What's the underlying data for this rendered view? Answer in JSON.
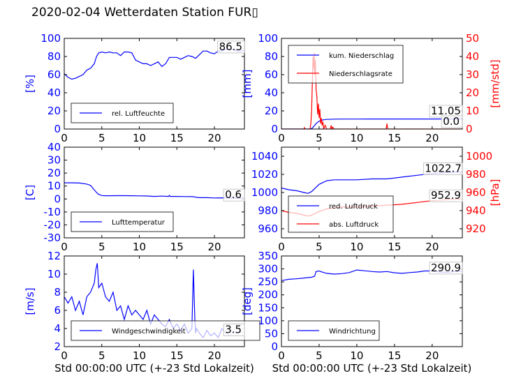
{
  "title": "2020-02-04 Wetterdaten Station FUR▯",
  "colors": {
    "primary": "#0000ff",
    "secondary": "#ff0000",
    "axis": "#000000"
  },
  "chart_data": [
    {
      "type": "line",
      "panel": "top-left",
      "ylabel": "[%]",
      "xlim": [
        0,
        24
      ],
      "ylim": [
        0,
        100
      ],
      "xticks": [
        0,
        5,
        10,
        15,
        20
      ],
      "yticks": [
        0,
        20,
        40,
        60,
        80,
        100
      ],
      "legend": "bottom-left",
      "last_value_label": "86.5",
      "series": [
        {
          "name": "rel. Luftfeuchte",
          "color": "#0000ff",
          "x": [
            0,
            0.5,
            1,
            1.5,
            2,
            2.5,
            3,
            3.5,
            4,
            4.3,
            4.6,
            5,
            5.5,
            6,
            6.5,
            7,
            7.5,
            8,
            8.5,
            9,
            9.5,
            10,
            10.5,
            11,
            11.5,
            12,
            12.5,
            13,
            13.5,
            14,
            14.5,
            15,
            15.5,
            16,
            16.5,
            17,
            17.5,
            18,
            18.5,
            19,
            19.5,
            20,
            20.5,
            21,
            21.5,
            22,
            22.5,
            23,
            23.5,
            24
          ],
          "values": [
            61,
            57,
            55,
            56,
            58,
            60,
            65,
            67,
            72,
            80,
            84,
            85,
            84,
            85,
            84,
            84,
            81,
            85,
            85,
            84,
            76,
            74,
            72,
            72,
            70,
            72,
            74,
            69,
            72,
            79,
            79,
            79,
            77,
            79,
            81,
            80,
            78,
            82,
            86,
            86,
            84,
            83,
            86,
            86,
            88,
            88,
            88,
            86,
            86,
            87
          ]
        }
      ]
    },
    {
      "type": "line",
      "panel": "top-right",
      "ylabel": "[mm]",
      "y2label": "[mm/std]",
      "xlim": [
        0,
        24
      ],
      "ylim": [
        0,
        100
      ],
      "y2lim": [
        0,
        50
      ],
      "xticks": [
        0,
        5,
        10,
        15,
        20
      ],
      "yticks": [
        0,
        20,
        40,
        60,
        80,
        100
      ],
      "y2ticks": [
        0,
        10,
        20,
        30,
        40,
        50
      ],
      "legend": "top-left",
      "last_value_labels": [
        "11.05",
        "0.0"
      ],
      "series": [
        {
          "name": "kum. Niederschlag",
          "color": "#0000ff",
          "axis": "left",
          "x": [
            0,
            3.8,
            4.0,
            4.2,
            4.4,
            4.6,
            4.8,
            5.0,
            5.3,
            5.6,
            6,
            7,
            8,
            10,
            12,
            14,
            16,
            18,
            20,
            22,
            24
          ],
          "values": [
            0,
            0,
            0.5,
            2,
            4,
            6,
            7.5,
            8.7,
            9.6,
            10.2,
            10.6,
            10.9,
            11.0,
            11.03,
            11.05,
            11.05,
            11.05,
            11.05,
            11.05,
            11.05,
            11.05
          ]
        },
        {
          "name": "Niederschlagsrate",
          "color": "#ff0000",
          "axis": "right",
          "x": [
            0,
            3.0,
            3.05,
            3.1,
            3.8,
            3.9,
            4.0,
            4.1,
            4.15,
            4.2,
            4.3,
            4.35,
            4.4,
            4.5,
            4.6,
            4.7,
            4.8,
            4.9,
            5.0,
            5.1,
            5.2,
            5.3,
            5.4,
            5.5,
            5.6,
            5.8,
            6.0,
            6.5,
            6.6,
            6.7,
            6.8,
            7.0,
            8.0,
            13.9,
            14.0,
            14.1,
            14.2,
            24
          ],
          "values": [
            0,
            0,
            1,
            0,
            0,
            3,
            10,
            25,
            34,
            40,
            33,
            42,
            30,
            38,
            22,
            18,
            8,
            14,
            6,
            11,
            3,
            6,
            2,
            4,
            0,
            2,
            0,
            0,
            2,
            0,
            1,
            0,
            0,
            0,
            3,
            0,
            0,
            0
          ]
        }
      ]
    },
    {
      "type": "line",
      "panel": "middle-left",
      "ylabel": "[C]",
      "xlim": [
        0,
        24
      ],
      "ylim": [
        -30,
        40
      ],
      "xticks": [
        0,
        5,
        10,
        15,
        20
      ],
      "yticks": [
        -30,
        -20,
        -10,
        0,
        10,
        20,
        30,
        40
      ],
      "legend": "bottom-left",
      "last_value_label": "0.6",
      "series": [
        {
          "name": "Lufttemperatur",
          "color": "#0000ff",
          "x": [
            0,
            1,
            2,
            3,
            3.5,
            4,
            4.3,
            4.6,
            5,
            5.5,
            6,
            7,
            8,
            9,
            10,
            11,
            12,
            13,
            13.9,
            14,
            14.1,
            15,
            16,
            17,
            18,
            19,
            20,
            21,
            22,
            23,
            24
          ],
          "values": [
            12.5,
            12.5,
            12.3,
            11.5,
            10.5,
            7,
            5,
            3.5,
            2.7,
            2.5,
            2.5,
            2.6,
            2.6,
            2.5,
            2.4,
            2.3,
            2.0,
            2.2,
            2.0,
            2.8,
            2.0,
            2.0,
            1.9,
            1.8,
            1.0,
            1.0,
            0.8,
            0.9,
            0.7,
            0.6,
            0.6
          ]
        }
      ]
    },
    {
      "type": "line",
      "panel": "middle-right",
      "y2label": "[hPa]",
      "xlim": [
        0,
        24
      ],
      "ylim": [
        950,
        1050
      ],
      "y2lim": [
        910,
        1010
      ],
      "xticks": [
        0,
        5,
        10,
        15,
        20
      ],
      "yticks": [
        960,
        980,
        1000,
        1020,
        1040
      ],
      "y2ticks": [
        920,
        940,
        960,
        980,
        1000
      ],
      "legend": "bottom-left",
      "last_value_labels": [
        "1022.7",
        "952.9"
      ],
      "series": [
        {
          "name": "red. Luftdruck",
          "color": "#0000ff",
          "axis": "left",
          "x": [
            0,
            1,
            2,
            3,
            3.5,
            4,
            5,
            6,
            7,
            8,
            10,
            12,
            14,
            16,
            18,
            20,
            22,
            24
          ],
          "values": [
            1005,
            1003,
            1002,
            1000,
            999,
            1001,
            1009,
            1013,
            1014,
            1014,
            1014,
            1015,
            1015,
            1017,
            1019,
            1021,
            1022,
            1022.7
          ]
        },
        {
          "name": "abs. Luftdruck",
          "color": "#ff0000",
          "axis": "right",
          "x": [
            0,
            1,
            2,
            3,
            3.5,
            4,
            5,
            6,
            7,
            8,
            10,
            12,
            14,
            16,
            18,
            20,
            22,
            24
          ],
          "values": [
            940,
            938,
            937,
            935,
            934,
            935,
            939,
            942,
            943,
            944,
            944,
            945,
            946,
            947,
            949,
            951,
            952,
            952.9
          ]
        }
      ]
    },
    {
      "type": "line",
      "panel": "bottom-left",
      "ylabel": "[m/s]",
      "xlabel": "Std 00:00:00 UTC (+-23 Std Lokalzeit)",
      "xlim": [
        0,
        24
      ],
      "ylim": [
        2,
        12
      ],
      "xticks": [
        0,
        5,
        10,
        15,
        20
      ],
      "yticks": [
        2,
        4,
        6,
        8,
        10,
        12
      ],
      "legend": "bottom-left",
      "last_value_label": "3.5",
      "series": [
        {
          "name": "Windgeschwindigkeit",
          "color": "#0000ff",
          "x": [
            0,
            0.5,
            1,
            1.5,
            2,
            2.5,
            3,
            3.5,
            4,
            4.2,
            4.4,
            4.6,
            5,
            5.5,
            6,
            6.5,
            7,
            7.5,
            8,
            8.5,
            9,
            9.5,
            10,
            10.5,
            11,
            11.5,
            12,
            12.5,
            13,
            13.5,
            14,
            14.5,
            15,
            15.5,
            16,
            16.5,
            17,
            17.2,
            17.4,
            17.5,
            17.6,
            18,
            18.5,
            19,
            19.5,
            20,
            20.5,
            21,
            21.5,
            22,
            22.5,
            23,
            23.5,
            24
          ],
          "values": [
            7.5,
            6.8,
            7.5,
            6,
            7,
            5.5,
            7.5,
            8,
            9,
            10.5,
            11.2,
            8.5,
            9,
            7.5,
            7,
            8,
            6,
            6.5,
            5,
            6.5,
            5.5,
            6,
            5.5,
            5,
            6,
            4.5,
            5.5,
            5,
            4.5,
            4.2,
            5,
            4,
            4.5,
            3.8,
            4.5,
            3.5,
            4,
            10.5,
            5,
            3.5,
            4,
            3.5,
            3,
            3.8,
            3.2,
            3.5,
            3,
            4,
            3.5,
            3.2,
            3.8,
            3.5,
            3.5,
            3.5
          ]
        }
      ]
    },
    {
      "type": "line",
      "panel": "bottom-right",
      "ylabel": "[deg]",
      "xlabel": "Std 00:00:00 UTC (+-23 Std Lokalzeit)",
      "xlim": [
        0,
        24
      ],
      "ylim": [
        0,
        350
      ],
      "xticks": [
        0,
        5,
        10,
        15,
        20
      ],
      "yticks": [
        0,
        50,
        100,
        150,
        200,
        250,
        300,
        350
      ],
      "legend": "bottom-left",
      "last_value_label": "290.9",
      "series": [
        {
          "name": "Windrichtung",
          "color": "#0000ff",
          "x": [
            0,
            1,
            2,
            3,
            4,
            4.4,
            4.6,
            5,
            5.5,
            6,
            7,
            8,
            9,
            10,
            11,
            12,
            13,
            14,
            15,
            16,
            17,
            18,
            19,
            20,
            21,
            22,
            23,
            24
          ],
          "values": [
            255,
            260,
            262,
            265,
            268,
            272,
            290,
            292,
            287,
            283,
            280,
            282,
            286,
            296,
            293,
            290,
            288,
            290,
            285,
            283,
            286,
            288,
            292,
            292,
            288,
            287,
            290,
            291
          ]
        }
      ]
    }
  ]
}
